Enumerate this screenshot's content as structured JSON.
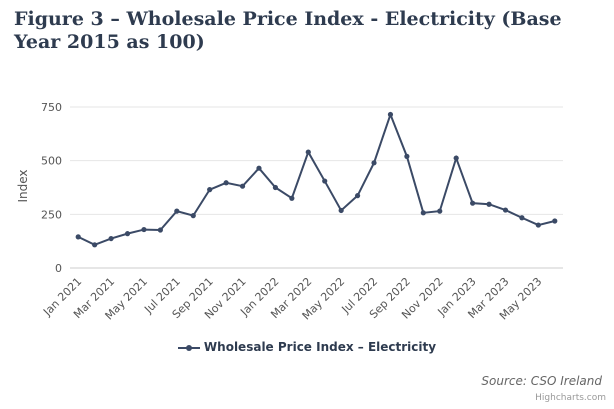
{
  "title": "Figure 3 – Wholesale Price Index - Electricity (Base Year 2015 as 100)",
  "source": "Source: CSO Ireland",
  "credits": "Highcharts.com",
  "colors": {
    "series": "#3b4a66",
    "grid": "#e6e6e6",
    "title": "#2e3b4f"
  },
  "chart_data": {
    "type": "line",
    "title": "Figure 3 – Wholesale Price Index - Electricity (Base Year 2015 as 100)",
    "xlabel": "",
    "ylabel": "Index",
    "ylim": [
      0,
      750
    ],
    "yticks": [
      "0",
      "250",
      "500",
      "750"
    ],
    "grid": true,
    "legend": "bottom-center",
    "x": [
      "Jan 2021",
      "Feb 2021",
      "Mar 2021",
      "Apr 2021",
      "May 2021",
      "Jun 2021",
      "Jul 2021",
      "Aug 2021",
      "Sep 2021",
      "Oct 2021",
      "Nov 2021",
      "Dec 2021",
      "Jan 2022",
      "Feb 2022",
      "Mar 2022",
      "Apr 2022",
      "May 2022",
      "Jun 2022",
      "Jul 2022",
      "Aug 2022",
      "Sep 2022",
      "Oct 2022",
      "Nov 2022",
      "Dec 2022",
      "Jan 2023",
      "Feb 2023",
      "Mar 2023",
      "Apr 2023",
      "May 2023",
      "Jun 2023"
    ],
    "xtick_labels": [
      "Jan 2021",
      "Mar 2021",
      "May 2021",
      "Jul 2021",
      "Sep 2021",
      "Nov 2021",
      "Jan 2022",
      "Mar 2022",
      "May 2022",
      "Jul 2022",
      "Sep 2022",
      "Nov 2022",
      "Jan 2023",
      "Mar 2023",
      "May 2023"
    ],
    "series": [
      {
        "name": "Wholesale Price Index – Electricity",
        "values": [
          145,
          108,
          137,
          160,
          179,
          177,
          265,
          244,
          365,
          397,
          381,
          465,
          375,
          325,
          540,
          405,
          268,
          337,
          490,
          715,
          520,
          257,
          265,
          512,
          302,
          297,
          270,
          234,
          200,
          219
        ]
      }
    ]
  }
}
